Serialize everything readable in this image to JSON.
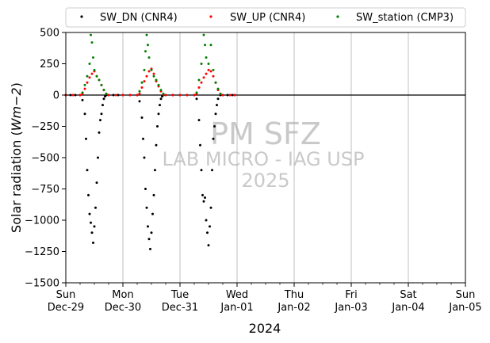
{
  "chart_data": {
    "type": "scatter",
    "xlabel": "2024",
    "ylabel": "Solar radiation (Wm−2)",
    "ylim": [
      -1500,
      500
    ],
    "yticks": [
      500,
      250,
      0,
      -250,
      -500,
      -750,
      -1000,
      -1250,
      -1500
    ],
    "ytick_labels": [
      "500",
      "250",
      "0",
      "−250",
      "−500",
      "−750",
      "−1000",
      "−1250",
      "−1500"
    ],
    "xlim": [
      "2024-12-29",
      "2025-01-05"
    ],
    "xticks": [
      {
        "date": "2024-12-29",
        "day": "Sun",
        "label": "Dec-29"
      },
      {
        "date": "2024-12-30",
        "day": "Mon",
        "label": "Dec-30"
      },
      {
        "date": "2024-12-31",
        "day": "Tue",
        "label": "Dec-31"
      },
      {
        "date": "2025-01-01",
        "day": "Wed",
        "label": "Jan-01"
      },
      {
        "date": "2025-01-02",
        "day": "Thu",
        "label": "Jan-02"
      },
      {
        "date": "2025-01-03",
        "day": "Fri",
        "label": "Jan-03"
      },
      {
        "date": "2025-01-04",
        "day": "Sat",
        "label": "Jan-04"
      },
      {
        "date": "2025-01-05",
        "day": "Sun",
        "label": "Jan-05"
      }
    ],
    "grid": "vertical",
    "zero_line": true,
    "legend_position": "top",
    "watermark": [
      "PM SFZ",
      "LAB MICRO - IAG USP",
      "2025"
    ],
    "series": [
      {
        "name": "SW_DN (CNR4)",
        "color": "#000000",
        "x": [
          "2024-12-29 00:00",
          "2024-12-29 02:00",
          "2024-12-29 04:00",
          "2024-12-29 06:00",
          "2024-12-29 07:00",
          "2024-12-29 08:00",
          "2024-12-29 08:30",
          "2024-12-29 09:00",
          "2024-12-29 09:30",
          "2024-12-29 10:00",
          "2024-12-29 10:30",
          "2024-12-29 11:00",
          "2024-12-29 11:30",
          "2024-12-29 12:00",
          "2024-12-29 12:30",
          "2024-12-29 13:00",
          "2024-12-29 13:30",
          "2024-12-29 14:00",
          "2024-12-29 14:30",
          "2024-12-29 15:00",
          "2024-12-29 15:30",
          "2024-12-29 16:00",
          "2024-12-29 16:30",
          "2024-12-29 17:00",
          "2024-12-29 18:00",
          "2024-12-29 20:00",
          "2024-12-29 22:00",
          "2024-12-30 00:00",
          "2024-12-30 03:00",
          "2024-12-30 06:00",
          "2024-12-30 07:00",
          "2024-12-30 08:00",
          "2024-12-30 08:30",
          "2024-12-30 09:00",
          "2024-12-30 09:30",
          "2024-12-30 10:00",
          "2024-12-30 10:30",
          "2024-12-30 11:00",
          "2024-12-30 11:30",
          "2024-12-30 12:00",
          "2024-12-30 12:30",
          "2024-12-30 13:00",
          "2024-12-30 13:30",
          "2024-12-30 14:00",
          "2024-12-30 14:30",
          "2024-12-30 15:00",
          "2024-12-30 15:30",
          "2024-12-30 16:00",
          "2024-12-30 16:30",
          "2024-12-30 17:00",
          "2024-12-30 18:00",
          "2024-12-30 21:00",
          "2024-12-31 00:00",
          "2024-12-31 03:00",
          "2024-12-31 06:00",
          "2024-12-31 07:00",
          "2024-12-31 08:00",
          "2024-12-31 08:30",
          "2024-12-31 09:00",
          "2024-12-31 09:30",
          "2024-12-31 10:00",
          "2024-12-31 10:30",
          "2024-12-31 11:00",
          "2024-12-31 11:30",
          "2024-12-31 12:00",
          "2024-12-31 12:30",
          "2024-12-31 13:00",
          "2024-12-31 13:30",
          "2024-12-31 14:00",
          "2024-12-31 14:30",
          "2024-12-31 15:00",
          "2024-12-31 15:30",
          "2024-12-31 16:00",
          "2024-12-31 17:00",
          "2024-12-31 18:00",
          "2024-12-31 20:00",
          "2024-12-31 22:00",
          "2024-12-31 23:00"
        ],
        "y": [
          0,
          0,
          0,
          0,
          -40,
          -150,
          -350,
          -600,
          -800,
          -950,
          -1020,
          -1100,
          -1180,
          -1050,
          -900,
          -700,
          -500,
          -300,
          -200,
          -150,
          -80,
          -30,
          -10,
          0,
          0,
          0,
          0,
          0,
          0,
          0,
          -50,
          -180,
          -350,
          -500,
          -750,
          -900,
          -1050,
          -1150,
          -1230,
          -1100,
          -950,
          -800,
          -600,
          -400,
          -250,
          -150,
          -80,
          -30,
          -10,
          0,
          0,
          0,
          0,
          0,
          0,
          -30,
          -200,
          -400,
          -600,
          -800,
          -850,
          -820,
          -1000,
          -1100,
          -1200,
          -1050,
          -900,
          -600,
          -350,
          -250,
          -150,
          -80,
          -30,
          0,
          0,
          0,
          0,
          0
        ]
      },
      {
        "name": "SW_UP (CNR4)",
        "color": "#ff0000",
        "x": [
          "2024-12-29 00:00",
          "2024-12-29 03:00",
          "2024-12-29 06:00",
          "2024-12-29 07:00",
          "2024-12-29 08:00",
          "2024-12-29 09:00",
          "2024-12-29 10:00",
          "2024-12-29 11:00",
          "2024-12-29 12:00",
          "2024-12-29 13:00",
          "2024-12-29 14:00",
          "2024-12-29 15:00",
          "2024-12-29 16:00",
          "2024-12-29 17:00",
          "2024-12-29 18:00",
          "2024-12-29 21:00",
          "2024-12-30 00:00",
          "2024-12-30 03:00",
          "2024-12-30 06:00",
          "2024-12-30 07:00",
          "2024-12-30 08:00",
          "2024-12-30 09:00",
          "2024-12-30 10:00",
          "2024-12-30 11:00",
          "2024-12-30 12:00",
          "2024-12-30 13:00",
          "2024-12-30 14:00",
          "2024-12-30 15:00",
          "2024-12-30 16:00",
          "2024-12-30 17:00",
          "2024-12-30 18:00",
          "2024-12-30 21:00",
          "2024-12-31 00:00",
          "2024-12-31 03:00",
          "2024-12-31 06:00",
          "2024-12-31 07:00",
          "2024-12-31 08:00",
          "2024-12-31 09:00",
          "2024-12-31 10:00",
          "2024-12-31 11:00",
          "2024-12-31 12:00",
          "2024-12-31 13:00",
          "2024-12-31 14:00",
          "2024-12-31 15:00",
          "2024-12-31 16:00",
          "2024-12-31 17:00",
          "2024-12-31 18:00",
          "2024-12-31 21:00",
          "2024-12-31 23:00"
        ],
        "y": [
          0,
          0,
          0,
          10,
          50,
          100,
          140,
          170,
          190,
          150,
          120,
          80,
          40,
          10,
          0,
          0,
          0,
          0,
          0,
          10,
          60,
          110,
          150,
          190,
          210,
          170,
          110,
          70,
          30,
          5,
          0,
          0,
          0,
          0,
          0,
          10,
          60,
          100,
          140,
          170,
          200,
          190,
          150,
          100,
          40,
          10,
          0,
          0,
          0
        ]
      },
      {
        "name": "SW_station (CMP3)",
        "color": "#008000",
        "x": [
          "2024-12-29 07:00",
          "2024-12-29 08:00",
          "2024-12-29 09:00",
          "2024-12-29 10:00",
          "2024-12-29 10:30",
          "2024-12-29 11:00",
          "2024-12-29 11:30",
          "2024-12-29 12:00",
          "2024-12-29 13:00",
          "2024-12-29 14:00",
          "2024-12-29 15:00",
          "2024-12-29 16:00",
          "2024-12-29 17:00",
          "2024-12-30 07:00",
          "2024-12-30 08:00",
          "2024-12-30 09:00",
          "2024-12-30 09:30",
          "2024-12-30 10:00",
          "2024-12-30 10:30",
          "2024-12-30 11:00",
          "2024-12-30 12:00",
          "2024-12-30 13:00",
          "2024-12-30 14:00",
          "2024-12-30 15:00",
          "2024-12-30 16:00",
          "2024-12-30 17:00",
          "2024-12-31 07:00",
          "2024-12-31 08:00",
          "2024-12-31 09:00",
          "2024-12-31 10:00",
          "2024-12-31 10:30",
          "2024-12-31 11:00",
          "2024-12-31 12:00",
          "2024-12-31 13:00",
          "2024-12-31 14:00",
          "2024-12-31 15:00",
          "2024-12-31 16:00",
          "2024-12-31 17:00"
        ],
        "y": [
          20,
          80,
          150,
          250,
          480,
          420,
          300,
          200,
          150,
          120,
          80,
          40,
          10,
          30,
          100,
          200,
          350,
          480,
          400,
          300,
          200,
          150,
          120,
          80,
          40,
          10,
          20,
          120,
          250,
          480,
          400,
          300,
          250,
          400,
          200,
          100,
          50,
          10
        ]
      }
    ]
  }
}
